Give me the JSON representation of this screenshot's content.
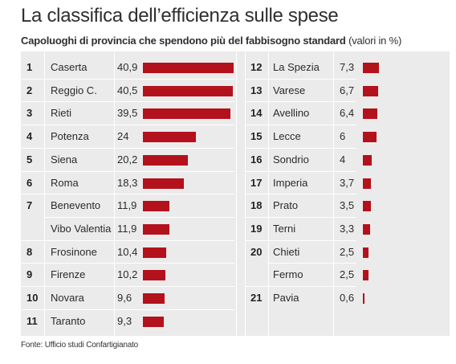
{
  "title": "La classifica dell’efficienza sulle spese",
  "subtitle_bold": "Capoluoghi di provincia che spendono più del fabbisogno standard",
  "subtitle_rest": " (valori in %)",
  "source": "Fonte: Ufficio studi Confartigianato",
  "colors": {
    "bar": "#b3111b",
    "panel": "#ebebeb"
  },
  "chart_data": {
    "type": "bar",
    "orientation": "horizontal",
    "title": "La classifica dell’efficienza sulle spese",
    "subtitle": "Capoluoghi di provincia che spendono più del fabbisogno standard (valori in %)",
    "unit": "%",
    "xlim": [
      0,
      40.9
    ],
    "grid": false,
    "left": [
      {
        "rank": "1",
        "name": "Caserta",
        "label": "40,9",
        "value": 40.9
      },
      {
        "rank": "2",
        "name": "Reggio C.",
        "label": "40,5",
        "value": 40.5
      },
      {
        "rank": "3",
        "name": "Rieti",
        "label": "39,5",
        "value": 39.5
      },
      {
        "rank": "4",
        "name": "Potenza",
        "label": "24",
        "value": 24
      },
      {
        "rank": "5",
        "name": "Siena",
        "label": "20,2",
        "value": 20.2
      },
      {
        "rank": "6",
        "name": "Roma",
        "label": "18,3",
        "value": 18.3
      },
      {
        "rank": "7",
        "name": "Benevento",
        "label": "11,9",
        "value": 11.9
      },
      {
        "rank": "",
        "name": "Vibo Valentia",
        "label": "11,9",
        "value": 11.9
      },
      {
        "rank": "8",
        "name": "Frosinone",
        "label": "10,4",
        "value": 10.4
      },
      {
        "rank": "9",
        "name": "Firenze",
        "label": "10,2",
        "value": 10.2
      },
      {
        "rank": "10",
        "name": "Novara",
        "label": "9,6",
        "value": 9.6
      },
      {
        "rank": "11",
        "name": "Taranto",
        "label": "9,3",
        "value": 9.3
      }
    ],
    "right": [
      {
        "rank": "12",
        "name": "La Spezia",
        "label": "7,3",
        "value": 7.3
      },
      {
        "rank": "13",
        "name": "Varese",
        "label": "6,7",
        "value": 6.7
      },
      {
        "rank": "14",
        "name": "Avellino",
        "label": "6,4",
        "value": 6.4
      },
      {
        "rank": "15",
        "name": "Lecce",
        "label": "6",
        "value": 6
      },
      {
        "rank": "16",
        "name": "Sondrio",
        "label": "4",
        "value": 4
      },
      {
        "rank": "17",
        "name": "Imperia",
        "label": "3,7",
        "value": 3.7
      },
      {
        "rank": "18",
        "name": "Prato",
        "label": "3,5",
        "value": 3.5
      },
      {
        "rank": "19",
        "name": "Terni",
        "label": "3,3",
        "value": 3.3
      },
      {
        "rank": "20",
        "name": "Chieti",
        "label": "2,5",
        "value": 2.5
      },
      {
        "rank": "",
        "name": "Fermo",
        "label": "2,5",
        "value": 2.5
      },
      {
        "rank": "21",
        "name": "Pavia",
        "label": "0,6",
        "value": 0.6
      }
    ]
  }
}
